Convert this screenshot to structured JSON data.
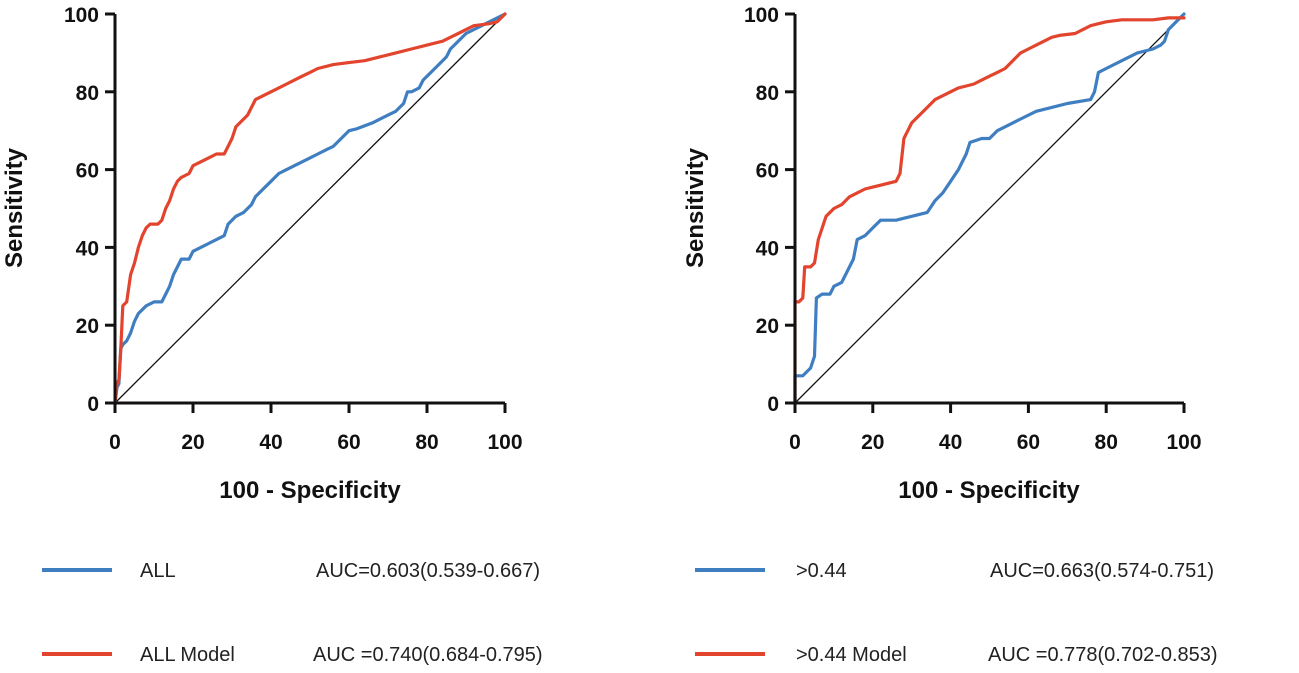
{
  "chart_data": [
    {
      "type": "line",
      "subtype": "roc",
      "xlabel": "100 - Specificity",
      "ylabel": "Sensitivity",
      "xlim": [
        0,
        100
      ],
      "ylim": [
        0,
        100
      ],
      "xticks": [
        0,
        20,
        40,
        60,
        80,
        100
      ],
      "yticks": [
        0,
        20,
        40,
        60,
        80,
        100
      ],
      "reference_line": [
        [
          0,
          0
        ],
        [
          100,
          100
        ]
      ],
      "series": [
        {
          "name": "ALL",
          "auc_label": "AUC=0.603(0.539-0.667)",
          "color": "#3f7fc1",
          "points": [
            [
              0,
              0
            ],
            [
              0.5,
              4
            ],
            [
              1,
              5
            ],
            [
              1.5,
              14
            ],
            [
              2,
              15
            ],
            [
              3,
              16
            ],
            [
              4,
              18
            ],
            [
              5,
              21
            ],
            [
              6,
              23
            ],
            [
              8,
              25
            ],
            [
              10,
              26
            ],
            [
              12,
              26
            ],
            [
              13,
              28
            ],
            [
              14,
              30
            ],
            [
              15,
              33
            ],
            [
              16,
              35
            ],
            [
              17,
              37
            ],
            [
              19,
              37
            ],
            [
              20,
              39
            ],
            [
              22,
              40
            ],
            [
              24,
              41
            ],
            [
              26,
              42
            ],
            [
              28,
              43
            ],
            [
              29,
              46
            ],
            [
              30,
              47
            ],
            [
              31,
              48
            ],
            [
              33,
              49
            ],
            [
              35,
              51
            ],
            [
              36,
              53
            ],
            [
              38,
              55
            ],
            [
              40,
              57
            ],
            [
              42,
              59
            ],
            [
              44,
              60
            ],
            [
              46,
              61
            ],
            [
              48,
              62
            ],
            [
              50,
              63
            ],
            [
              52,
              64
            ],
            [
              54,
              65
            ],
            [
              56,
              66
            ],
            [
              58,
              68
            ],
            [
              60,
              70
            ],
            [
              62,
              70.5
            ],
            [
              66,
              72
            ],
            [
              70,
              74
            ],
            [
              72,
              75
            ],
            [
              74,
              77
            ],
            [
              75,
              80
            ],
            [
              76,
              80
            ],
            [
              78,
              81
            ],
            [
              79,
              83
            ],
            [
              80,
              84
            ],
            [
              82,
              86
            ],
            [
              84,
              88
            ],
            [
              85,
              89
            ],
            [
              86,
              91
            ],
            [
              88,
              93
            ],
            [
              90,
              95
            ],
            [
              92,
              96
            ],
            [
              94,
              97
            ],
            [
              96,
              98
            ],
            [
              98,
              99
            ],
            [
              100,
              100
            ]
          ]
        },
        {
          "name": "ALL Model",
          "auc_label": "AUC =0.740(0.684-0.795)",
          "color": "#e2442e",
          "points": [
            [
              0,
              0
            ],
            [
              0.5,
              5
            ],
            [
              1,
              6
            ],
            [
              1.5,
              14
            ],
            [
              2,
              25
            ],
            [
              3,
              26
            ],
            [
              4,
              33
            ],
            [
              5,
              36
            ],
            [
              6,
              40
            ],
            [
              7,
              43
            ],
            [
              8,
              45
            ],
            [
              9,
              46
            ],
            [
              11,
              46
            ],
            [
              12,
              47
            ],
            [
              13,
              50
            ],
            [
              14,
              52
            ],
            [
              15,
              55
            ],
            [
              16,
              57
            ],
            [
              17,
              58
            ],
            [
              19,
              59
            ],
            [
              20,
              61
            ],
            [
              22,
              62
            ],
            [
              24,
              63
            ],
            [
              26,
              64
            ],
            [
              28,
              64
            ],
            [
              29,
              66
            ],
            [
              30,
              68
            ],
            [
              31,
              71
            ],
            [
              32,
              72
            ],
            [
              34,
              74
            ],
            [
              35,
              76
            ],
            [
              36,
              78
            ],
            [
              38,
              79
            ],
            [
              40,
              80
            ],
            [
              42,
              81
            ],
            [
              44,
              82
            ],
            [
              46,
              83
            ],
            [
              48,
              84
            ],
            [
              50,
              85
            ],
            [
              52,
              86
            ],
            [
              56,
              87
            ],
            [
              60,
              87.5
            ],
            [
              64,
              88
            ],
            [
              68,
              89
            ],
            [
              72,
              90
            ],
            [
              76,
              91
            ],
            [
              80,
              92
            ],
            [
              84,
              93
            ],
            [
              86,
              94
            ],
            [
              88,
              95
            ],
            [
              90,
              96
            ],
            [
              92,
              97
            ],
            [
              96,
              97.5
            ],
            [
              98,
              98
            ],
            [
              100,
              100
            ]
          ]
        }
      ]
    },
    {
      "type": "line",
      "subtype": "roc",
      "xlabel": "100 - Specificity",
      "ylabel": "Sensitivity",
      "xlim": [
        0,
        100
      ],
      "ylim": [
        0,
        100
      ],
      "xticks": [
        0,
        20,
        40,
        60,
        80,
        100
      ],
      "yticks": [
        0,
        20,
        40,
        60,
        80,
        100
      ],
      "reference_line": [
        [
          0,
          0
        ],
        [
          100,
          100
        ]
      ],
      "series": [
        {
          "name": ">0.44",
          "auc_label": "AUC=0.663(0.574-0.751)",
          "color": "#3f7fc1",
          "points": [
            [
              0,
              0
            ],
            [
              0,
              7
            ],
            [
              2,
              7
            ],
            [
              3,
              8
            ],
            [
              4,
              9
            ],
            [
              5,
              12
            ],
            [
              5.5,
              27
            ],
            [
              7,
              28
            ],
            [
              9,
              28
            ],
            [
              10,
              30
            ],
            [
              12,
              31
            ],
            [
              13,
              33
            ],
            [
              14,
              35
            ],
            [
              15,
              37
            ],
            [
              16,
              42
            ],
            [
              18,
              43
            ],
            [
              20,
              45
            ],
            [
              22,
              47
            ],
            [
              26,
              47
            ],
            [
              30,
              48
            ],
            [
              34,
              49
            ],
            [
              36,
              52
            ],
            [
              38,
              54
            ],
            [
              40,
              57
            ],
            [
              42,
              60
            ],
            [
              44,
              64
            ],
            [
              45,
              67
            ],
            [
              48,
              68
            ],
            [
              50,
              68
            ],
            [
              52,
              70
            ],
            [
              54,
              71
            ],
            [
              58,
              73
            ],
            [
              62,
              75
            ],
            [
              66,
              76
            ],
            [
              70,
              77
            ],
            [
              76,
              78
            ],
            [
              77,
              80
            ],
            [
              78,
              85
            ],
            [
              80,
              86
            ],
            [
              84,
              88
            ],
            [
              88,
              90
            ],
            [
              92,
              91
            ],
            [
              94,
              92
            ],
            [
              95,
              93
            ],
            [
              96,
              96
            ],
            [
              98,
              98
            ],
            [
              100,
              100
            ]
          ]
        },
        {
          "name": ">0.44 Model",
          "auc_label": "AUC =0.778(0.702-0.853)",
          "color": "#e2442e",
          "points": [
            [
              0,
              0
            ],
            [
              0,
              26
            ],
            [
              1,
              26
            ],
            [
              2,
              27
            ],
            [
              2.5,
              35
            ],
            [
              4,
              35
            ],
            [
              5,
              36
            ],
            [
              6,
              42
            ],
            [
              7,
              45
            ],
            [
              8,
              48
            ],
            [
              10,
              50
            ],
            [
              12,
              51
            ],
            [
              14,
              53
            ],
            [
              16,
              54
            ],
            [
              18,
              55
            ],
            [
              20,
              55.5
            ],
            [
              22,
              56
            ],
            [
              26,
              57
            ],
            [
              27,
              59
            ],
            [
              28,
              68
            ],
            [
              29,
              70
            ],
            [
              30,
              72
            ],
            [
              32,
              74
            ],
            [
              34,
              76
            ],
            [
              36,
              78
            ],
            [
              38,
              79
            ],
            [
              40,
              80
            ],
            [
              42,
              81
            ],
            [
              44,
              81.5
            ],
            [
              46,
              82
            ],
            [
              48,
              83
            ],
            [
              50,
              84
            ],
            [
              52,
              85
            ],
            [
              54,
              86
            ],
            [
              56,
              88
            ],
            [
              58,
              90
            ],
            [
              60,
              91
            ],
            [
              62,
              92
            ],
            [
              64,
              93
            ],
            [
              66,
              94
            ],
            [
              68,
              94.5
            ],
            [
              72,
              95
            ],
            [
              74,
              96
            ],
            [
              76,
              97
            ],
            [
              78,
              97.5
            ],
            [
              80,
              98
            ],
            [
              84,
              98.5
            ],
            [
              88,
              98.5
            ],
            [
              92,
              98.5
            ],
            [
              96,
              99
            ],
            [
              98,
              99
            ],
            [
              100,
              99
            ]
          ]
        }
      ]
    }
  ]
}
